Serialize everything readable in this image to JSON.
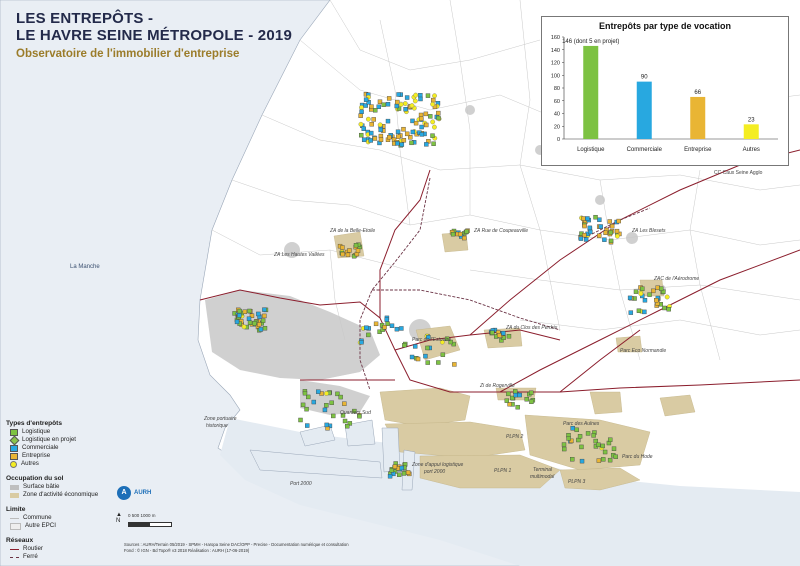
{
  "title": {
    "line1": "LES ENTREPÔTS -",
    "line2": "LE HAVRE SEINE MÉTROPOLE - 2019",
    "subtitle": "Observatoire de l'immobilier d'entreprise"
  },
  "chart_data": {
    "type": "bar",
    "title": "Entrepôts par type de vocation",
    "categories": [
      "Logistique",
      "Commerciale",
      "Entreprise",
      "Autres"
    ],
    "values": [
      146,
      90,
      66,
      23
    ],
    "data_labels": [
      "146 (dont 5 en projet)",
      "90",
      "66",
      "23"
    ],
    "colors": [
      "#7dc242",
      "#28a8e0",
      "#e9b534",
      "#f4ed22"
    ],
    "ylim": [
      0,
      160
    ],
    "yticks": [
      "0",
      "20",
      "40",
      "60",
      "80",
      "100",
      "120",
      "140",
      "160"
    ],
    "grid": false
  },
  "legend": {
    "types_title": "Types d'entrepôts",
    "types": [
      {
        "label": "Logistique",
        "color": "#7dc242",
        "shape": "square"
      },
      {
        "label": "Logistique en projet",
        "color": "#8bc34a",
        "shape": "diamond"
      },
      {
        "label": "Commerciale",
        "color": "#28a8e0",
        "shape": "square"
      },
      {
        "label": "Entreprise",
        "color": "#e9b534",
        "shape": "square"
      },
      {
        "label": "Autres",
        "color": "#f4ed22",
        "shape": "circle"
      }
    ],
    "sol_title": "Occupation du sol",
    "sol": [
      {
        "label": "Surface bâtie",
        "color": "#bfbfbf"
      },
      {
        "label": "Zone d'activité économique",
        "color": "#d9cba3"
      }
    ],
    "limite_title": "Limite",
    "limite": [
      "Commune",
      "Autre EPCI"
    ],
    "reseaux_title": "Réseaux",
    "reseaux": [
      {
        "label": "Routier",
        "color": "#8b1e2d"
      },
      {
        "label": "Ferré",
        "color": "#8b1e2d"
      }
    ]
  },
  "logo": {
    "mark": "A",
    "name": "AURH"
  },
  "scale": {
    "north": "N",
    "labels": "0      500    1000 m"
  },
  "sources": [
    "Sources : AURH/Terrain 05/2019 - SPMH - Haropa Seine DAC/OPP - Precise - Documentation numérique et consultation",
    "Fond : © IGN - Bd Topo® v3 2018 Réalisation : AURH (17-06-2019)"
  ],
  "map_labels": {
    "sea": "La Manche",
    "cc_caux": "CC Caux Seine Agglo",
    "za_belle_etoile": "ZA de la Belle-Etoile",
    "za_hautes_vallees": "ZA Les Hautes Vallées",
    "za_rue_coupeauville": "ZA Rue de Coupeauville",
    "za_blesets": "ZA Les Blesets",
    "zac_aerodrome": "ZAC de l'Aérodrome",
    "za_clos_perdrix": "ZA du Clos des Perdrix",
    "parc_estuaire": "Parc de l'Estuaire",
    "parc_eco_normandie": "Parc Eco Normandie",
    "zi_rogerville": "Zi de Rogerville",
    "zone_portuaire": "Zone portuaire historique",
    "quartiers_sud": "Quartiers Sud",
    "parc_des_aulnes": "Parc des Aulnes",
    "parc_du_hode": "Parc du Hode",
    "zone_appui": "Zone d'appui logistique port 2000",
    "port_2000": "Port 2000",
    "terminal_multimodal": "Terminal multimodal",
    "plpn1": "PLPN 1",
    "plpn2": "PLPN 2",
    "plpn3": "PLPN 3"
  }
}
